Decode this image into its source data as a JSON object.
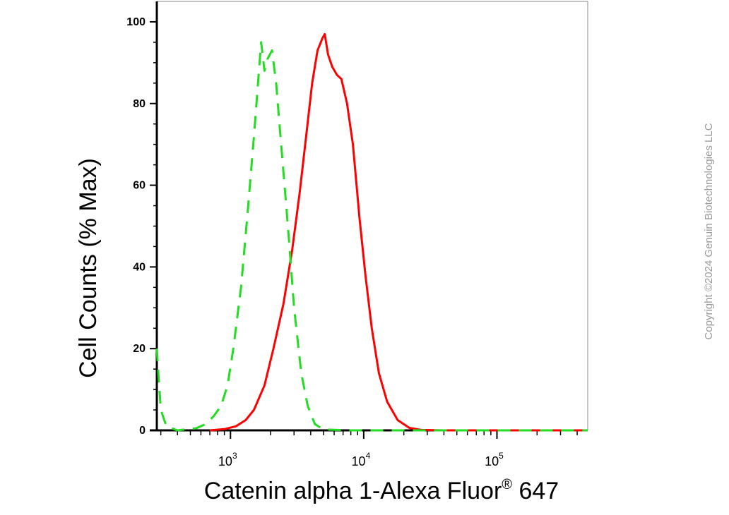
{
  "chart_data": {
    "type": "line",
    "xlabel": "Catenin alpha 1-Alexa Fluor",
    "xlabel_superscript": "®",
    "xlabel_suffix": " 647",
    "ylabel": "Cell Counts (% Max)",
    "x_scale": "log",
    "xlim": [
      280,
      480000
    ],
    "ylim": [
      0,
      105
    ],
    "y_ticks": [
      0,
      20,
      40,
      60,
      80,
      100
    ],
    "x_ticks": [
      {
        "value": 1000,
        "base": "10",
        "exp": "3"
      },
      {
        "value": 10000,
        "base": "10",
        "exp": "4"
      },
      {
        "value": 100000,
        "base": "10",
        "exp": "5"
      }
    ],
    "grid": false,
    "series": [
      {
        "color": "#ff0000",
        "style": "solid",
        "x": [
          700,
          900,
          1100,
          1300,
          1500,
          1800,
          2100,
          2500,
          2900,
          3300,
          3700,
          4100,
          4500,
          4900,
          5100,
          5400,
          5800,
          6300,
          6800,
          7500,
          8300,
          9300,
          10300,
          11500,
          13000,
          15000,
          18000,
          22000,
          27000,
          40000,
          100000,
          480000
        ],
        "y": [
          0,
          0.3,
          1,
          2.5,
          5,
          11,
          20,
          31,
          44,
          58,
          72,
          85,
          93,
          96,
          97,
          92,
          89,
          87,
          86,
          80,
          70,
          52,
          38,
          25,
          14,
          7,
          2.5,
          0.6,
          0.1,
          0,
          0,
          0
        ]
      },
      {
        "color": "#22dd22",
        "style": "dashed",
        "x": [
          280,
          290,
          300,
          330,
          400,
          550,
          650,
          750,
          850,
          950,
          1050,
          1200,
          1350,
          1500,
          1600,
          1700,
          1800,
          1900,
          2050,
          2200,
          2400,
          2700,
          3000,
          3400,
          3800,
          4300,
          5000,
          8000,
          15000,
          480000
        ],
        "y": [
          20,
          12,
          5,
          1,
          0,
          0.5,
          1.5,
          3.5,
          6,
          11,
          20,
          35,
          54,
          72,
          84,
          95,
          88,
          91,
          93,
          85,
          70,
          50,
          30,
          14,
          6,
          1.5,
          0.2,
          0,
          0,
          0
        ]
      }
    ]
  },
  "watermark": "Copyright ©2024 Genuin Biotechnologies LLC"
}
